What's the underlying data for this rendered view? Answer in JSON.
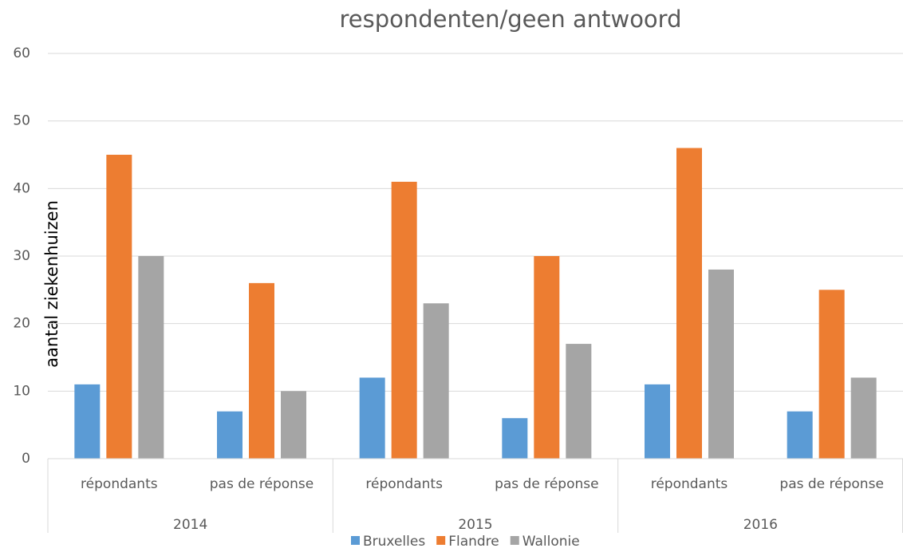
{
  "chart_data": {
    "type": "bar",
    "title": "respondenten/geen antwoord",
    "ylabel": "aantal ziekenhuizen",
    "categories": [
      "répondants",
      "pas de réponse",
      "répondants",
      "pas de réponse",
      "répondants",
      "pas de réponse"
    ],
    "groups": [
      "2014",
      "2015",
      "2016"
    ],
    "series": [
      {
        "name": "Bruxelles",
        "color": "#5b9bd5",
        "values": [
          11,
          7,
          12,
          6,
          11,
          7
        ]
      },
      {
        "name": "Flandre",
        "color": "#ed7d31",
        "values": [
          45,
          26,
          41,
          30,
          46,
          25
        ]
      },
      {
        "name": "Wallonie",
        "color": "#a5a5a5",
        "values": [
          30,
          10,
          23,
          17,
          28,
          12
        ]
      }
    ],
    "ylim": [
      0,
      60
    ],
    "yticks": [
      0,
      10,
      20,
      30,
      40,
      50,
      60
    ],
    "grid": true,
    "legend": "bottom"
  }
}
